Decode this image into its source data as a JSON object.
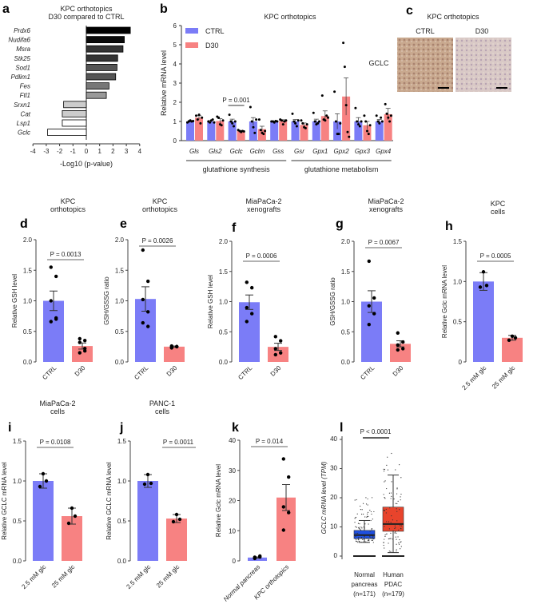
{
  "colors": {
    "ctrl": "#7b7cf7",
    "d30": "#f78282",
    "box_normal": "#1f4fe0",
    "box_pdac": "#e8442c"
  },
  "chart_data": [
    {
      "id": "a",
      "type": "bar",
      "orientation": "horizontal",
      "title": [
        "KPC orthotopics",
        "D30 compared to CTRL"
      ],
      "xlabel": "-Log10 (p-value)",
      "xlim": [
        -4,
        4
      ],
      "xticks": [
        -4,
        -3,
        -2,
        -1,
        0,
        1,
        2,
        3,
        4
      ],
      "categories": [
        "Prdx6",
        "Nudifa6",
        "Msra",
        "Stk25",
        "Sod1",
        "Pdlim1",
        "Fes",
        "Ftl1",
        "Srxn1",
        "Cat",
        "Lsp1",
        "Gclc"
      ],
      "values": [
        3.3,
        2.85,
        2.75,
        2.35,
        2.3,
        2.2,
        1.7,
        1.5,
        -1.7,
        -1.8,
        -1.8,
        -2.9
      ],
      "fills": [
        "#000",
        "#0a0a0a",
        "#333",
        "#333",
        "#555",
        "#555",
        "#777",
        "#999",
        "#ccc",
        "#ccc",
        "#fff",
        "#fff"
      ]
    },
    {
      "id": "b",
      "type": "bar",
      "title": "KPC orthotopics",
      "ylabel": "Relative mRNA level",
      "ylim": [
        0,
        6
      ],
      "yticks": [
        0,
        1,
        2,
        3,
        4,
        5,
        6
      ],
      "legend": [
        "CTRL",
        "D30"
      ],
      "legend_position": "top-left",
      "categories": [
        "Gls",
        "Gls2",
        "Gclc",
        "Gclm",
        "Gss",
        "Gsr",
        "Gpx1",
        "Gpx2",
        "Gpx3",
        "Gpx4"
      ],
      "series": [
        {
          "name": "CTRL",
          "values": [
            1.0,
            1.0,
            1.0,
            1.0,
            1.0,
            1.0,
            1.0,
            1.0,
            1.0,
            1.0
          ],
          "sem": [
            0.05,
            0.05,
            0.12,
            0.2,
            0.03,
            0.1,
            0.12,
            0.4,
            0.2,
            0.1
          ],
          "points": [
            [
              0.95,
              1.0,
              1.05,
              1.0,
              1.02
            ],
            [
              1.0,
              0.95,
              1.05,
              1.1,
              0.95
            ],
            [
              1.35,
              1.0,
              0.9,
              0.75,
              1.0
            ],
            [
              1.75,
              1.0,
              0.7,
              0.4,
              1.1
            ],
            [
              1.0,
              1.0,
              0.95,
              1.02,
              1.0
            ],
            [
              1.4,
              1.0,
              0.9,
              0.75,
              1.05
            ],
            [
              1.45,
              1.0,
              0.85,
              0.9,
              1.0
            ],
            [
              2.55,
              1.0,
              0.35,
              0.35,
              0.9
            ],
            [
              1.7,
              1.0,
              0.85,
              0.75,
              1.0
            ],
            [
              1.3,
              1.0,
              0.9,
              1.2,
              1.0
            ]
          ]
        },
        {
          "name": "D30",
          "values": [
            1.2,
            1.02,
            0.5,
            0.6,
            1.02,
            0.82,
            1.28,
            2.3,
            0.8,
            1.38
          ],
          "sem": [
            0.1,
            0.12,
            0.03,
            0.15,
            0.07,
            0.1,
            0.27,
            0.97,
            0.2,
            0.3
          ],
          "points": [
            [
              1.3,
              1.1,
              1.35,
              0.9,
              1.2
            ],
            [
              1.25,
              1.2,
              0.85,
              0.8,
              1.05
            ],
            [
              0.55,
              0.5,
              0.45,
              0.5,
              0.48
            ],
            [
              1.1,
              0.55,
              0.4,
              0.35,
              0.5
            ],
            [
              1.1,
              1.05,
              0.85,
              1.0,
              1.05
            ],
            [
              1.05,
              0.9,
              0.7,
              0.65,
              0.85
            ],
            [
              2.35,
              1.1,
              1.05,
              1.3,
              1.2
            ],
            [
              5.1,
              3.85,
              1.85,
              0.45,
              0.2
            ],
            [
              1.3,
              1.0,
              0.5,
              0.35,
              0.8
            ],
            [
              1.9,
              1.4,
              1.2,
              1.0,
              1.3
            ]
          ]
        }
      ],
      "annotations": [
        {
          "text": "P = 0.001",
          "category": "Gclc"
        }
      ],
      "groups": [
        {
          "label": "glutathione synthesis",
          "from": 0,
          "to": 4
        },
        {
          "label": "glutathione metabolism",
          "from": 5,
          "to": 9
        }
      ]
    },
    {
      "id": "d",
      "type": "bar",
      "title": [
        "KPC",
        "orthotopics"
      ],
      "ylabel": "Relative GSH level",
      "ylim": [
        0,
        2
      ],
      "yticks": [
        "0.0",
        "0.5",
        "1.0",
        "1.5",
        "2.0"
      ],
      "categories": [
        "CTRL",
        "D30"
      ],
      "values": [
        1.0,
        0.26
      ],
      "sem": [
        0.16,
        0.05
      ],
      "points": [
        [
          1.55,
          1.4,
          1.0,
          0.72,
          0.66,
          0.7
        ],
        [
          0.38,
          0.35,
          0.32,
          0.22,
          0.15,
          0.18
        ]
      ],
      "pvalue": "P = 0.0013"
    },
    {
      "id": "e",
      "type": "bar",
      "title": [
        "KPC",
        "orthotopics"
      ],
      "ylabel": "GSH/GSSG ratio",
      "ylim": [
        0,
        2
      ],
      "yticks": [
        "0.0",
        "0.5",
        "1.0",
        "1.5",
        "2.0"
      ],
      "categories": [
        "CTRL",
        "D30"
      ],
      "values": [
        1.03,
        0.25
      ],
      "sem": [
        0.2,
        0.01
      ],
      "points": [
        [
          1.83,
          1.32,
          1.02,
          0.82,
          0.64,
          0.58
        ],
        [
          0.26,
          0.25,
          0.24,
          0.25,
          0.23,
          0.25
        ]
      ],
      "pvalue": "P = 0.0026"
    },
    {
      "id": "f",
      "type": "bar",
      "title": [
        "MiaPaCa-2",
        "xenografts"
      ],
      "ylabel": "Relative GSH level",
      "ylim": [
        0,
        2
      ],
      "yticks": [
        "0.0",
        "0.5",
        "1.0",
        "1.5",
        "2.0"
      ],
      "categories": [
        "CTRL",
        "D30"
      ],
      "values": [
        0.99,
        0.25
      ],
      "sem": [
        0.12,
        0.06
      ],
      "points": [
        [
          1.32,
          1.23,
          0.9,
          0.8,
          0.67
        ],
        [
          0.42,
          0.35,
          0.22,
          0.15,
          0.12
        ]
      ],
      "pvalue": "P = 0.0006"
    },
    {
      "id": "g",
      "type": "bar",
      "title": [
        "MiaPaCa-2",
        "xenografts"
      ],
      "ylabel": "GSH/GSSG ratio",
      "ylim": [
        0,
        2
      ],
      "yticks": [
        "0.0",
        "0.5",
        "1.0",
        "1.5",
        "2.0"
      ],
      "categories": [
        "CTRL",
        "D30"
      ],
      "values": [
        1.0,
        0.3
      ],
      "sem": [
        0.18,
        0.05
      ],
      "points": [
        [
          1.67,
          1.06,
          0.93,
          0.8,
          0.62
        ],
        [
          0.48,
          0.33,
          0.28,
          0.22,
          0.2
        ]
      ],
      "pvalue": "P = 0.0067"
    },
    {
      "id": "h",
      "type": "bar",
      "title": [
        "KPC",
        "cells"
      ],
      "ylabel": "Relative Gclc mRNA level",
      "ylim": [
        0,
        1.5
      ],
      "yticks": [
        "0",
        "0.5",
        "1.0",
        "1.5"
      ],
      "categories": [
        "2.5 mM glc",
        "25 mM glc"
      ],
      "values": [
        1.0,
        0.3
      ],
      "sd": [
        0.11,
        0.03
      ],
      "points": [
        [
          1.12,
          0.95,
          0.93
        ],
        [
          0.32,
          0.3,
          0.27
        ]
      ],
      "pvalue": "P = 0.0005"
    },
    {
      "id": "i",
      "type": "bar",
      "title": [
        "MiaPaCa-2",
        "cells"
      ],
      "ylabel": "Relative GCLC mRNA level",
      "ylim": [
        0,
        1.5
      ],
      "yticks": [
        "0.0",
        "0.5",
        "1.0",
        "1.5"
      ],
      "categories": [
        "2.5 mM glc",
        "25 mM glc"
      ],
      "values": [
        1.0,
        0.56
      ],
      "sd": [
        0.09,
        0.1
      ],
      "points": [
        [
          1.09,
          1.0,
          0.93
        ],
        [
          0.66,
          0.56,
          0.47
        ]
      ],
      "pvalue": "P = 0.0108"
    },
    {
      "id": "j",
      "type": "bar",
      "title": [
        "PANC-1",
        "cells"
      ],
      "ylabel": "Relative GCLC mRNA level",
      "ylim": [
        0,
        1.5
      ],
      "yticks": [
        "0.0",
        "0.5",
        "1.0",
        "1.5"
      ],
      "categories": [
        "2.5 mM glc",
        "25 mM glc"
      ],
      "values": [
        1.0,
        0.53
      ],
      "sd": [
        0.08,
        0.05
      ],
      "points": [
        [
          1.08,
          0.97,
          0.96
        ],
        [
          0.58,
          0.52,
          0.49
        ]
      ],
      "pvalue": "P = 0.0011"
    },
    {
      "id": "k",
      "type": "bar",
      "ylabel": "Relative Gclc mRNA level",
      "ylim": [
        0,
        40
      ],
      "yticks": [
        "0",
        "10",
        "20",
        "30",
        "40"
      ],
      "categories": [
        "Normal pancreas",
        "KPC orthotopics"
      ],
      "values": [
        1.1,
        21
      ],
      "sem": [
        0.2,
        4.3
      ],
      "points": [
        [
          1.0,
          1.6,
          1.2,
          1.3,
          0.8
        ],
        [
          33.8,
          27.8,
          17.9,
          16,
          10.2
        ]
      ],
      "pvalue": "P = 0.014"
    },
    {
      "id": "l",
      "type": "box",
      "ylabel": "GCLC mRNA level (TPM)",
      "ylim": [
        0,
        40
      ],
      "yticks": [
        "0",
        "10",
        "20",
        "30",
        "40"
      ],
      "categories": [
        "Normal pancreas (n=171)",
        "Human PDAC (n=179)"
      ],
      "labels": [
        [
          "Normal",
          "pancreas",
          "(n=171)"
        ],
        [
          "Human",
          "PDAC",
          "(n=179)"
        ]
      ],
      "boxes": [
        {
          "q1": 6,
          "median": 7.2,
          "q3": 8.8,
          "whisker_low": 4.7,
          "whisker_high": 12.2,
          "max": 21
        },
        {
          "q1": 8.5,
          "median": 11,
          "q3": 16.8,
          "whisker_low": 1.2,
          "whisker_high": 27.8,
          "max": 38
        }
      ],
      "pvalue": "P < 0.0001"
    }
  ],
  "panel_c": {
    "title": "KPC orthotopics",
    "columns": [
      "CTRL",
      "D30"
    ],
    "row_label": "GCLC"
  },
  "panel_labels": [
    "a",
    "b",
    "c",
    "d",
    "e",
    "f",
    "g",
    "h",
    "i",
    "j",
    "k",
    "l"
  ]
}
